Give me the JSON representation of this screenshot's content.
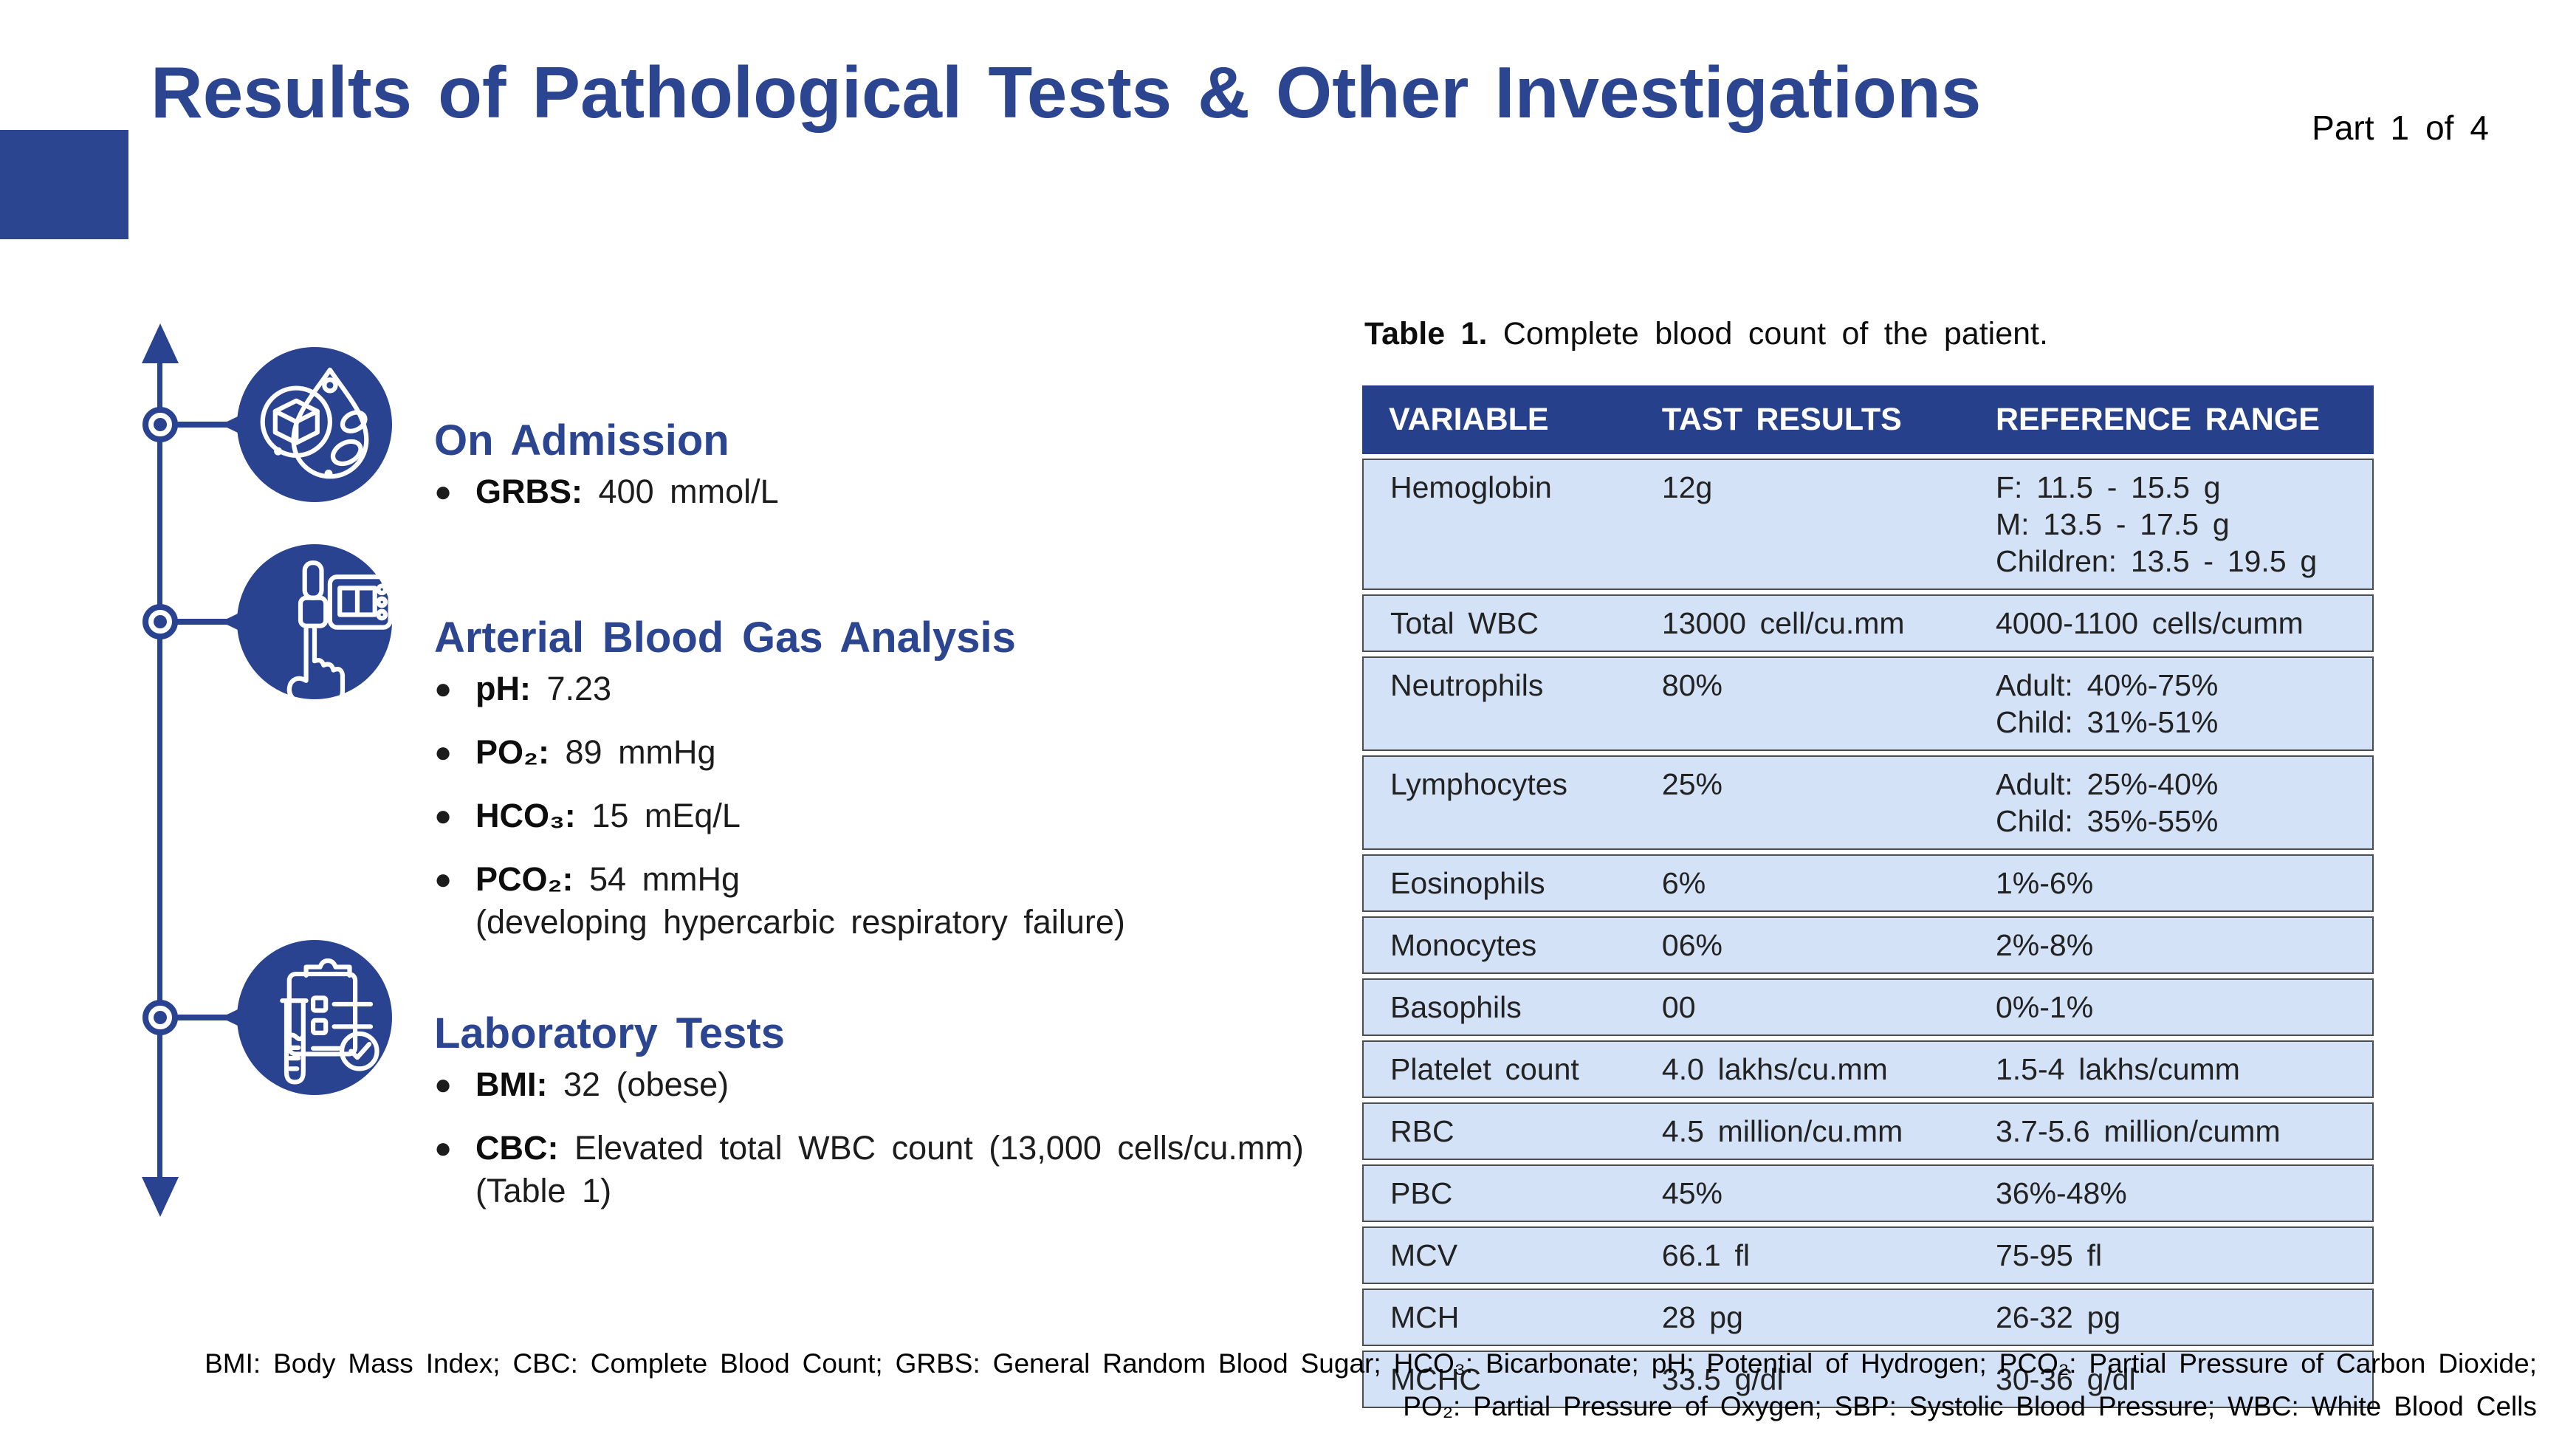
{
  "page": {
    "title": "Results of Pathological Tests & Other Investigations",
    "part_label": "Part 1 of 4"
  },
  "timeline": {
    "sections": [
      {
        "heading": "On Admission",
        "icon": "blood-sugar-drop-icon",
        "bullets": [
          {
            "label": "GRBS:",
            "text": "400 mmol/L"
          }
        ]
      },
      {
        "heading": "Arterial Blood Gas Analysis",
        "icon": "glucometer-hand-icon",
        "bullets": [
          {
            "label": "pH:",
            "text": "7.23"
          },
          {
            "label": "PO₂:",
            "text": "89 mmHg"
          },
          {
            "label": "HCO₃:",
            "text": "15 mEq/L"
          },
          {
            "label": "PCO₂:",
            "text": "54 mmHg",
            "note": "(developing hypercarbic respiratory failure)"
          }
        ]
      },
      {
        "heading": "Laboratory Tests",
        "icon": "clipboard-check-icon",
        "bullets": [
          {
            "label": "BMI:",
            "text": "32 (obese)"
          },
          {
            "label": "CBC:",
            "text": "Elevated total WBC count (13,000 cells/cu.mm)",
            "note": "(Table 1)"
          }
        ]
      }
    ]
  },
  "table": {
    "caption_bold": "Table 1.",
    "caption_rest": " Complete blood count of the patient.",
    "headers": [
      "VARIABLE",
      "TAST RESULTS",
      "REFERENCE RANGE"
    ],
    "rows": [
      {
        "variable": "Hemoglobin",
        "result": "12g",
        "reference": [
          "F: 11.5 - 15.5 g",
          "M: 13.5 - 17.5 g",
          "Children: 13.5 - 19.5 g"
        ]
      },
      {
        "variable": "Total WBC",
        "result": "13000 cell/cu.mm",
        "reference": [
          "4000-1100 cells/cumm"
        ]
      },
      {
        "variable": "Neutrophils",
        "result": "80%",
        "reference": [
          "Adult: 40%-75%",
          "Child: 31%-51%"
        ]
      },
      {
        "variable": "Lymphocytes",
        "result": "25%",
        "reference": [
          "Adult: 25%-40%",
          "Child: 35%-55%"
        ]
      },
      {
        "variable": "Eosinophils",
        "result": "6%",
        "reference": [
          "1%-6%"
        ]
      },
      {
        "variable": "Monocytes",
        "result": "06%",
        "reference": [
          "2%-8%"
        ]
      },
      {
        "variable": "Basophils",
        "result": "00",
        "reference": [
          "0%-1%"
        ]
      },
      {
        "variable": "Platelet count",
        "result": "4.0 lakhs/cu.mm",
        "reference": [
          "1.5-4 lakhs/cumm"
        ]
      },
      {
        "variable": "RBC",
        "result": "4.5 million/cu.mm",
        "reference": [
          "3.7-5.6 million/cumm"
        ]
      },
      {
        "variable": "PBC",
        "result": "45%",
        "reference": [
          "36%-48%"
        ]
      },
      {
        "variable": "MCV",
        "result": "66.1 fl",
        "reference": [
          "75-95 fl"
        ]
      },
      {
        "variable": "MCH",
        "result": "28 pg",
        "reference": [
          "26-32 pg"
        ]
      },
      {
        "variable": "MCHC",
        "result": "33.5 g/dl",
        "reference": [
          "30-36 g/dl"
        ]
      }
    ]
  },
  "footer": {
    "text": "BMI: Body Mass Index; CBC: Complete Blood Count; GRBS: General Random Blood Sugar; HCO₃: Bicarbonate; pH: Potential of Hydrogen; PCO₂: Partial Pressure of Carbon Dioxide; PO₂: Partial Pressure of Oxygen; SBP: Systolic Blood Pressure; WBC: White Blood Cells"
  },
  "colors": {
    "accent_blue": "#2a4390",
    "title_blue": "#2b4591",
    "table_header_bg": "#27408b",
    "table_row_bg": "#d3e2f6",
    "row_border": "#4d4d4d"
  }
}
